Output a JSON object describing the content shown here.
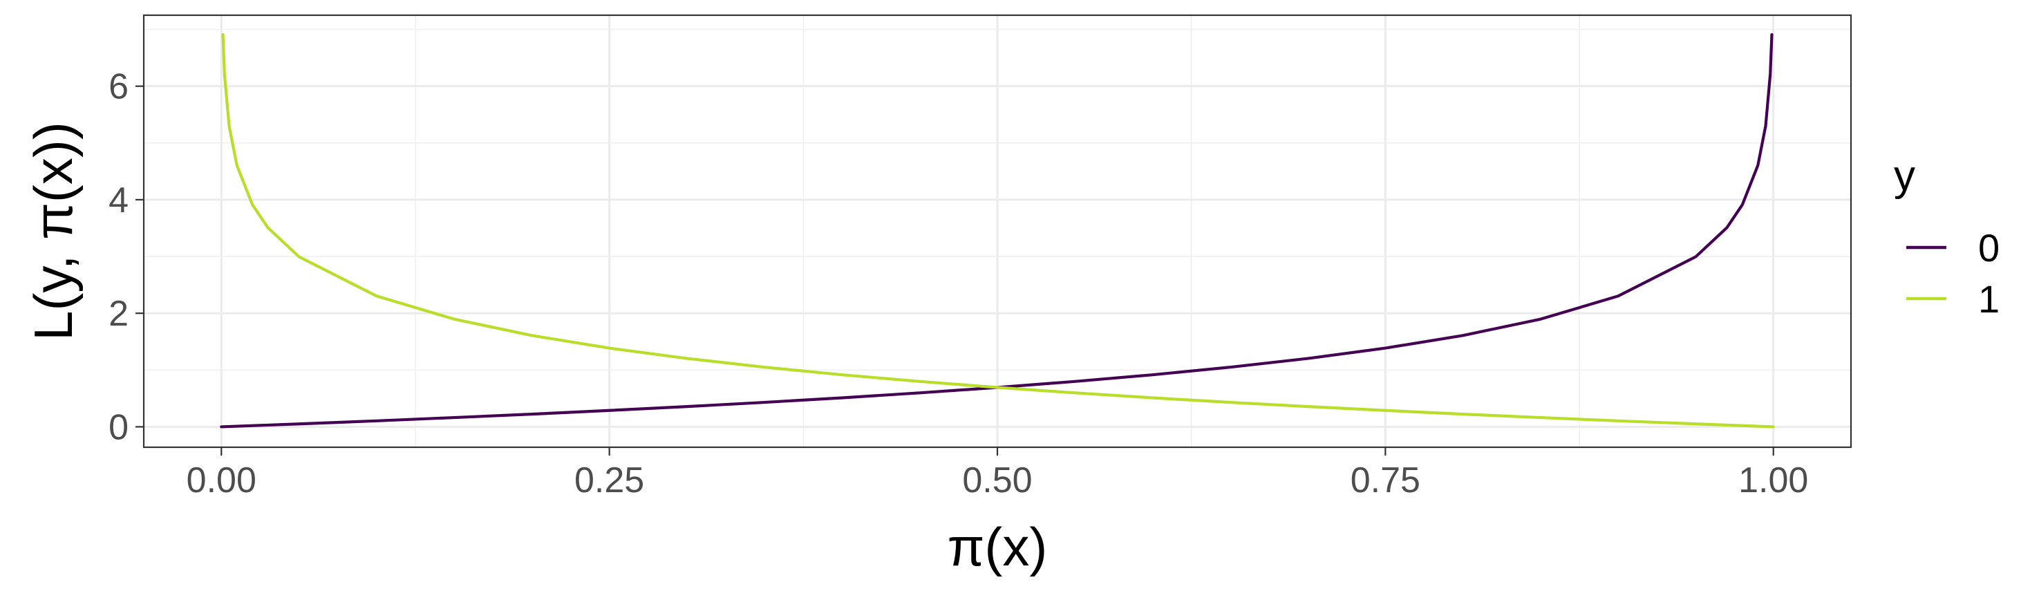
{
  "chart_data": {
    "type": "line",
    "xlabel": "π(x)",
    "ylabel": "L(y, π(x))",
    "xlim": [
      -0.05,
      1.05
    ],
    "ylim": [
      -0.36,
      7.25
    ],
    "x_ticks": [
      0,
      0.25,
      0.5,
      0.75,
      1
    ],
    "x_tick_labels": [
      "0.00",
      "0.25",
      "0.50",
      "0.75",
      "1.00"
    ],
    "y_ticks": [
      0,
      2,
      4,
      6
    ],
    "y_tick_labels": [
      "0",
      "2",
      "4",
      "6"
    ],
    "grid": true,
    "legend": {
      "title": "y",
      "position": "right",
      "entries": [
        "0",
        "1"
      ]
    },
    "series": [
      {
        "name": "0",
        "color": "#440154",
        "x": [
          0,
          0.05,
          0.1,
          0.15,
          0.2,
          0.25,
          0.3,
          0.35,
          0.4,
          0.45,
          0.5,
          0.55,
          0.6,
          0.65,
          0.7,
          0.75,
          0.8,
          0.85,
          0.9,
          0.95,
          0.97,
          0.98,
          0.99,
          0.995,
          0.998,
          0.999
        ],
        "y": [
          0,
          0.051,
          0.105,
          0.163,
          0.223,
          0.288,
          0.357,
          0.431,
          0.511,
          0.598,
          0.693,
          0.799,
          0.916,
          1.05,
          1.204,
          1.386,
          1.609,
          1.897,
          2.303,
          2.996,
          3.507,
          3.912,
          4.605,
          5.298,
          6.215,
          6.908
        ]
      },
      {
        "name": "1",
        "color": "#b8de29",
        "x": [
          0.001,
          0.002,
          0.005,
          0.01,
          0.02,
          0.03,
          0.05,
          0.1,
          0.15,
          0.2,
          0.25,
          0.3,
          0.35,
          0.4,
          0.45,
          0.5,
          0.55,
          0.6,
          0.65,
          0.7,
          0.75,
          0.8,
          0.85,
          0.9,
          0.95,
          1
        ],
        "y": [
          6.908,
          6.215,
          5.298,
          4.605,
          3.912,
          3.507,
          2.996,
          2.303,
          1.897,
          1.609,
          1.386,
          1.204,
          1.05,
          0.916,
          0.799,
          0.693,
          0.598,
          0.511,
          0.431,
          0.357,
          0.288,
          0.223,
          0.163,
          0.105,
          0.051,
          0
        ]
      }
    ]
  }
}
